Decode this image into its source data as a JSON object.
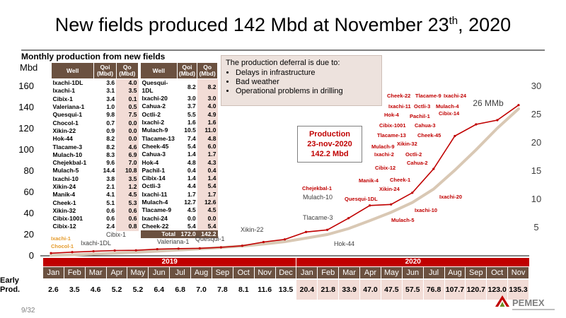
{
  "title": {
    "main": "New fields produced 142 Mbd at November 23",
    "sup": "th",
    "end": ", 2020"
  },
  "chart_subtitle": "Monthly production from new fields",
  "y_unit_label": "Mbd",
  "table_headers": {
    "well": "Well",
    "qoi": "Qoi (Mbd)",
    "qo": "Qo (Mbd)"
  },
  "wells_left": [
    [
      "Ixachi-1DL",
      "3.6",
      "4.0"
    ],
    [
      "Ixachi-1",
      "3.1",
      "3.5"
    ],
    [
      "Cibix-1",
      "3.4",
      "0.1"
    ],
    [
      "Valeriana-1",
      "1.0",
      "0.5"
    ],
    [
      "Quesqui-1",
      "9.8",
      "7.5"
    ],
    [
      "Chocol-1",
      "0.7",
      "0.0"
    ],
    [
      "Xikin-22",
      "0.9",
      "0.0"
    ],
    [
      "Hok-44",
      "8.2",
      "0.0"
    ],
    [
      "Tlacame-3",
      "8.2",
      "4.6"
    ],
    [
      "Mulach-10",
      "8.3",
      "6.9"
    ],
    [
      "Chejekbal-1",
      "9.6",
      "7.0"
    ],
    [
      "Mulach-5",
      "14.4",
      "10.8"
    ],
    [
      "Ixachi-10",
      "3.8",
      "3.5"
    ],
    [
      "Xikin-24",
      "2.1",
      "1.2"
    ],
    [
      "Manik-4",
      "4.1",
      "4.5"
    ],
    [
      "Cheek-1",
      "5.1",
      "5.3"
    ],
    [
      "Xikin-32",
      "0.6",
      "0.6"
    ],
    [
      "Cibix-1001",
      "0.6",
      "0.6"
    ],
    [
      "Cibix-12",
      "2.4",
      "0.8"
    ]
  ],
  "wells_right": [
    [
      "Quesqui-1DL",
      "8.2",
      "8.2"
    ],
    [
      "Ixachi-20",
      "3.0",
      "3.0"
    ],
    [
      "Cahua-2",
      "3.7",
      "4.0"
    ],
    [
      "Octli-2",
      "5.5",
      "4.9"
    ],
    [
      "Ixachi-2",
      "1.6",
      "1.6"
    ],
    [
      "Mulach-9",
      "10.5",
      "11.0"
    ],
    [
      "Tlacame-13",
      "7.4",
      "4.8"
    ],
    [
      "Cheek-45",
      "5.4",
      "6.0"
    ],
    [
      "Cahua-3",
      "1.4",
      "1.7"
    ],
    [
      "Hok-4",
      "4.8",
      "4.3"
    ],
    [
      "Pachil-1",
      "0.4",
      "0.4"
    ],
    [
      "Cibix-14",
      "1.4",
      "1.4"
    ],
    [
      "Octli-3",
      "4.4",
      "5.4"
    ],
    [
      "Ixachi-11",
      "1.7",
      "1.7"
    ],
    [
      "Mulach-4",
      "12.7",
      "12.6"
    ],
    [
      "Tlacame-9",
      "4.5",
      "4.5"
    ],
    [
      "Ixachi-24",
      "0.0",
      "0.0"
    ],
    [
      "Cheek-22",
      "5.4",
      "5.4"
    ]
  ],
  "wells_total": [
    "Total",
    "172.0",
    "142.2"
  ],
  "reasons": {
    "intro": "The production deferral is due to:",
    "items": [
      "Delays in infrastructure",
      "Bad weather",
      "Operational problems in drilling"
    ]
  },
  "production_box": {
    "line1": "Production",
    "line2": "23-nov-2020",
    "line3": "142.2 Mbd"
  },
  "peak_label": "26 MMb",
  "annotations_red": [
    "Cheek-22",
    "Tlacame-9",
    "Ixachi-24",
    "Ixachi-11",
    "Octli-3",
    "Mulach-4",
    "Hok-4",
    "Pachil-1",
    "Cibix-14",
    "Cibix-1001",
    "Cahua-3",
    "Tlacame-13",
    "Cheek-45",
    "Mulach-9",
    "Xikin-32",
    "Ixachi-2",
    "Octli-2",
    "Cahua-2",
    "Cibix-12",
    "Manik-4",
    "Cheek-1",
    "Xikin-24",
    "Chejekbal-1",
    "Quesqui-1DL",
    "Ixachi-20",
    "Ixachi-10",
    "Mulach-5"
  ],
  "annotations_gray": [
    "Mulach-10",
    "Tlacame-3",
    "Hok-44",
    "Xikin-22",
    "Cibix-1",
    "Ixachi-1DL",
    "Valeriana-1",
    "Quesqui-1"
  ],
  "annotations_orange": [
    "Ixachi-1",
    "Chocol-1"
  ],
  "early_label": {
    "line1": "Early",
    "line2": "Prod."
  },
  "page_number": "9/32",
  "logo_text": "PEMEX",
  "colors": {
    "red": "#c00000",
    "brown": "#6b5140",
    "pink": "#f2dcd6",
    "beige": "#d9c8b4",
    "orange": "#e59b2c"
  },
  "chart_data": {
    "type": "line",
    "title": "Monthly production from new fields",
    "ylabel": "Mbd",
    "ylim": [
      0,
      160
    ],
    "yticks": [
      0,
      20,
      40,
      60,
      80,
      100,
      120,
      140,
      160
    ],
    "y2lim": [
      0,
      30
    ],
    "y2ticks": [
      5,
      10,
      15,
      20,
      25,
      30
    ],
    "years": [
      "2019",
      "2020"
    ],
    "categories": [
      "Jan",
      "Feb",
      "Mar",
      "Apr",
      "May",
      "Jun",
      "Jul",
      "Aug",
      "Sep",
      "Oct",
      "Nov",
      "Dec",
      "Jan",
      "Feb",
      "Mar",
      "Apr",
      "May",
      "Jun",
      "Jul",
      "Aug",
      "Sep",
      "Oct",
      "Nov"
    ],
    "early_prod": [
      2.6,
      3.5,
      4.6,
      5.2,
      5.2,
      6.4,
      6.8,
      7.0,
      7.8,
      8.1,
      11.6,
      13.5,
      20.4,
      21.8,
      33.9,
      47.0,
      47.5,
      57.5,
      76.8,
      107.7,
      120.7,
      123.0,
      135.3
    ],
    "series": [
      {
        "role": "daily production, Mbd (left axis)",
        "values": [
          2.5,
          3.5,
          4.3,
          5.0,
          5.2,
          6.3,
          6.8,
          7.1,
          8.0,
          9.5,
          13.0,
          15.5,
          22.5,
          24.5,
          35.5,
          47.5,
          48.5,
          59.5,
          82.0,
          113.0,
          124.0,
          128.0,
          142.2
        ]
      },
      {
        "role": "cumulative production, MMb (right axis)",
        "values": [
          0.08,
          0.18,
          0.31,
          0.46,
          0.62,
          0.81,
          1.02,
          1.24,
          1.48,
          1.73,
          2.08,
          2.5,
          3.13,
          3.76,
          4.81,
          6.22,
          7.69,
          9.42,
          11.8,
          15.14,
          18.76,
          22.57,
          26.0
        ]
      }
    ],
    "grid": false,
    "legend": "none"
  }
}
